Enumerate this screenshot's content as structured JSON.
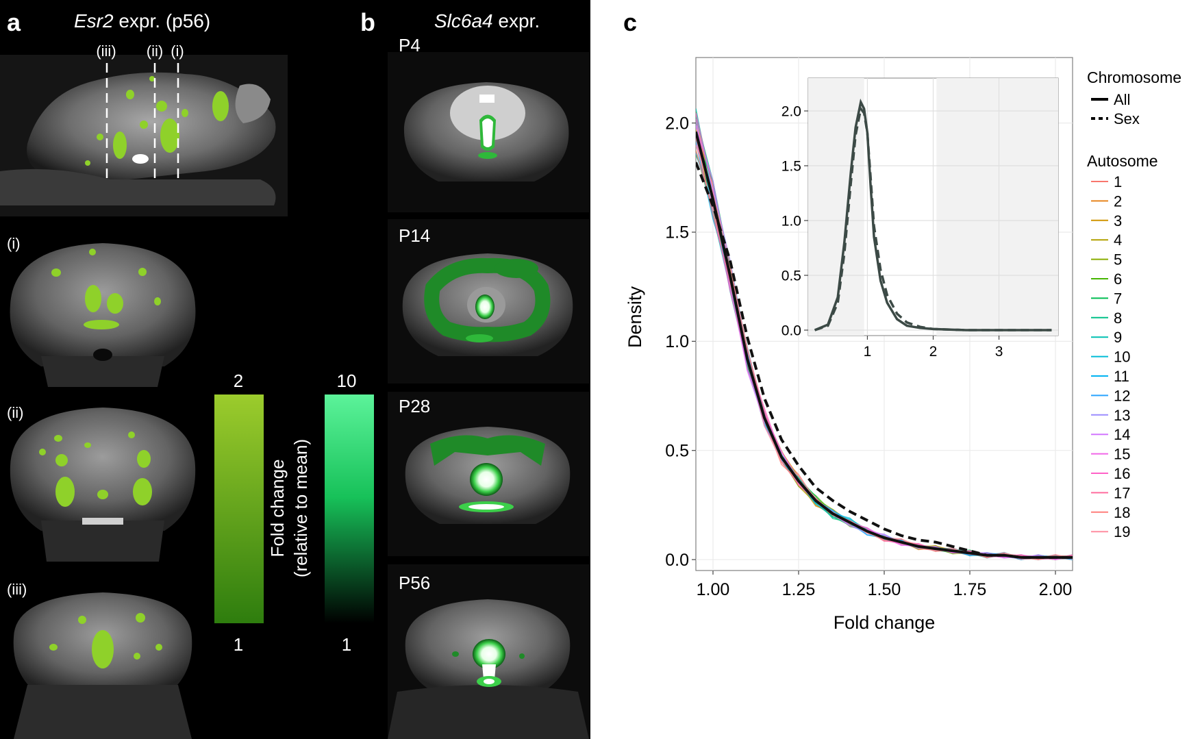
{
  "panels": {
    "a": {
      "letter": "a",
      "title_gene": "Esr2",
      "title_rest": " expr. (p56)",
      "slice_markers": [
        "(iii)",
        "(ii)",
        "(i)"
      ],
      "slice_labels": [
        "(i)",
        "(ii)",
        "(iii)"
      ]
    },
    "b": {
      "letter": "b",
      "title_gene": "Slc6a4",
      "title_rest": " expr.",
      "ages": [
        "P4",
        "P14",
        "P28",
        "P56"
      ]
    },
    "c": {
      "letter": "c"
    }
  },
  "colorbars": {
    "axis_label_line1": "Fold change",
    "axis_label_line2": "(relative to mean)",
    "esr2": {
      "max": "2",
      "min": "1",
      "color_top": "#9ccc2c",
      "color_bottom": "#2e7d0e"
    },
    "slc6a4": {
      "max": "10",
      "min": "1",
      "color_top": "#5cf39a",
      "color_bottom": "#000000"
    }
  },
  "colors": {
    "esr2_overlay": "#8fd12a",
    "slc6a4_overlay": "#2fb83a",
    "panel_bg": "#f2f2f2"
  },
  "chart_data": [
    {
      "type": "line",
      "title": "",
      "xlabel": "Fold change",
      "ylabel": "Density",
      "xlim": [
        0.95,
        2.05
      ],
      "ylim": [
        -0.05,
        2.3
      ],
      "x_ticks": [
        "1.00",
        "1.25",
        "1.50",
        "1.75",
        "2.00"
      ],
      "y_ticks": [
        "0.0",
        "0.5",
        "1.0",
        "1.5",
        "2.0"
      ],
      "x": [
        0.95,
        1.0,
        1.05,
        1.1,
        1.15,
        1.2,
        1.25,
        1.3,
        1.35,
        1.4,
        1.45,
        1.5,
        1.55,
        1.6,
        1.65,
        1.7,
        1.75,
        1.8,
        1.85,
        1.9,
        1.95,
        2.0,
        2.05
      ],
      "series": [
        {
          "name": "All",
          "group": "Chromosome",
          "style": "solid",
          "values": [
            1.96,
            1.65,
            1.3,
            0.92,
            0.65,
            0.47,
            0.36,
            0.27,
            0.21,
            0.17,
            0.13,
            0.1,
            0.08,
            0.06,
            0.05,
            0.04,
            0.03,
            0.02,
            0.02,
            0.01,
            0.01,
            0.01,
            0.01
          ]
        },
        {
          "name": "Sex",
          "group": "Chromosome",
          "style": "dashed",
          "values": [
            1.82,
            1.62,
            1.37,
            1.02,
            0.74,
            0.55,
            0.43,
            0.33,
            0.27,
            0.22,
            0.18,
            0.14,
            0.11,
            0.09,
            0.08,
            0.06,
            0.04,
            0.02,
            0.02,
            0.01,
            0.01,
            0.01,
            0.01
          ]
        }
      ],
      "legend": {
        "chromosome_title": "Chromosome",
        "chromosome_items": [
          "All",
          "Sex"
        ],
        "autosome_title": "Autosome",
        "autosome_items": [
          "1",
          "2",
          "3",
          "4",
          "5",
          "6",
          "7",
          "8",
          "9",
          "10",
          "11",
          "12",
          "13",
          "14",
          "15",
          "16",
          "17",
          "18",
          "19"
        ],
        "autosome_colors": [
          "#f8766d",
          "#e7851e",
          "#d09400",
          "#b2a100",
          "#89ac00",
          "#45b500",
          "#00bc51",
          "#00c087",
          "#00c0b2",
          "#00bcd6",
          "#00b3f2",
          "#29a3ff",
          "#9c8dff",
          "#d277ff",
          "#f166e8",
          "#ff61c7",
          "#ff6c9e",
          "#ff7f7a",
          "#ff8ea0"
        ],
        "position": "right"
      }
    },
    {
      "type": "line",
      "title": "",
      "xlabel": "",
      "ylabel": "",
      "xlim": [
        0.1,
        3.9
      ],
      "ylim": [
        -0.05,
        2.3
      ],
      "x_ticks": [
        "1",
        "2",
        "3"
      ],
      "y_ticks": [
        "0.0",
        "0.5",
        "1.0",
        "1.5",
        "2.0"
      ],
      "x": [
        0.2,
        0.4,
        0.55,
        0.65,
        0.75,
        0.82,
        0.9,
        0.95,
        1.0,
        1.05,
        1.1,
        1.2,
        1.3,
        1.45,
        1.6,
        1.8,
        2.0,
        2.5,
        3.0,
        3.5,
        3.8
      ],
      "series": [
        {
          "name": "All",
          "style": "solid",
          "values": [
            0.0,
            0.05,
            0.3,
            0.8,
            1.45,
            1.85,
            2.08,
            2.02,
            1.8,
            1.3,
            0.85,
            0.45,
            0.25,
            0.1,
            0.04,
            0.02,
            0.01,
            0.0,
            0.0,
            0.0,
            0.0
          ]
        },
        {
          "name": "Sex",
          "style": "dashed",
          "values": [
            0.0,
            0.04,
            0.25,
            0.7,
            1.35,
            1.78,
            2.02,
            1.98,
            1.8,
            1.38,
            0.95,
            0.55,
            0.32,
            0.15,
            0.07,
            0.03,
            0.01,
            0.0,
            0.0,
            0.0,
            0.0
          ]
        }
      ],
      "shaded_ranges": [
        [
          0.1,
          0.95
        ],
        [
          2.05,
          3.9
        ]
      ]
    }
  ]
}
